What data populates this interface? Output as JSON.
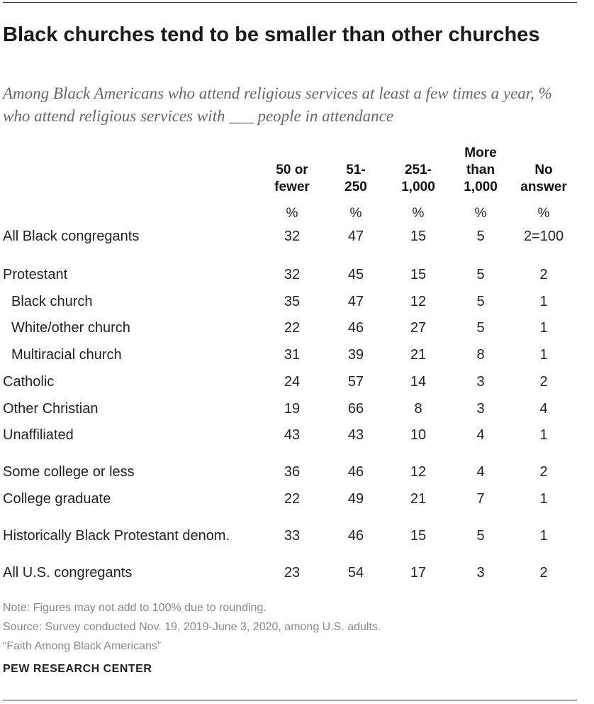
{
  "title": "Black churches tend to be smaller than other churches",
  "subtitle": "Among Black Americans who attend religious services at least a few times a year, % who attend religious services with ___ people in attendance",
  "chart_data": {
    "type": "table",
    "columns": [
      {
        "key": "50_or_fewer",
        "lines": [
          "50 or",
          "fewer"
        ]
      },
      {
        "key": "51_250",
        "lines": [
          "51-",
          "250"
        ]
      },
      {
        "key": "251_1000",
        "lines": [
          "251-",
          "1,000"
        ]
      },
      {
        "key": "more_than_1000",
        "lines": [
          "More",
          "than",
          "1,000"
        ]
      },
      {
        "key": "no_answer",
        "lines": [
          "No",
          "answer"
        ]
      }
    ],
    "unit_row": [
      "%",
      "%",
      "%",
      "%",
      "%"
    ],
    "rows": [
      {
        "label": "All Black congregants",
        "values": [
          "32",
          "47",
          "15",
          "5",
          "2=100"
        ]
      },
      {
        "label": "Protestant",
        "values": [
          "32",
          "45",
          "15",
          "5",
          "2"
        ]
      },
      {
        "label": "Black church",
        "indent": true,
        "values": [
          "35",
          "47",
          "12",
          "5",
          "1"
        ]
      },
      {
        "label": "White/other church",
        "indent": true,
        "values": [
          "22",
          "46",
          "27",
          "5",
          "1"
        ]
      },
      {
        "label": "Multiracial church",
        "indent": true,
        "values": [
          "31",
          "39",
          "21",
          "8",
          "1"
        ]
      },
      {
        "label": "Catholic",
        "values": [
          "24",
          "57",
          "14",
          "3",
          "2"
        ]
      },
      {
        "label": "Other Christian",
        "values": [
          "19",
          "66",
          "8",
          "3",
          "4"
        ]
      },
      {
        "label": "Unaffiliated",
        "values": [
          "43",
          "43",
          "10",
          "4",
          "1"
        ]
      },
      {
        "label": "Some college or less",
        "values": [
          "36",
          "46",
          "12",
          "4",
          "2"
        ]
      },
      {
        "label": "College graduate",
        "values": [
          "22",
          "49",
          "21",
          "7",
          "1"
        ]
      },
      {
        "label": "Historically Black Protestant denom.",
        "values": [
          "33",
          "46",
          "15",
          "5",
          "1"
        ]
      },
      {
        "label": "All U.S. congregants",
        "values": [
          "23",
          "54",
          "17",
          "3",
          "2"
        ]
      }
    ]
  },
  "footer": {
    "note": "Note: Figures may not add to 100% due to rounding.",
    "source": "Source: Survey conducted Nov. 19, 2019-June 3, 2020, among U.S. adults.",
    "report": "“Faith Among Black Americans”",
    "brand": "PEW RESEARCH CENTER"
  }
}
